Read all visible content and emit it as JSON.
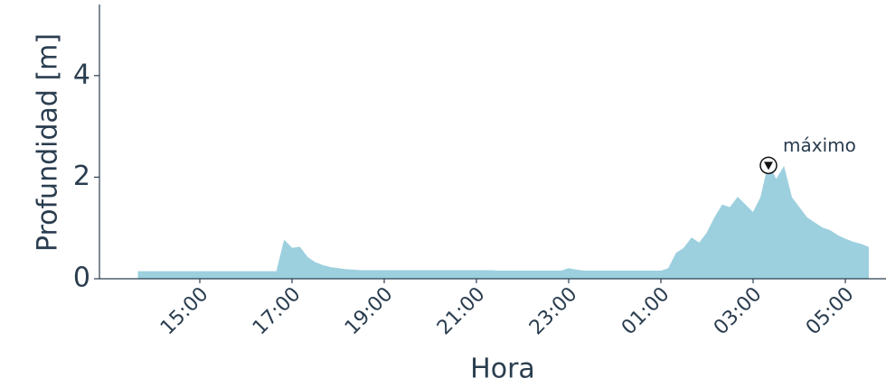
{
  "chart_data": {
    "type": "area",
    "x_label": "Hora",
    "y_label": "Profundidad [m]",
    "x": [
      "13:40",
      "13:50",
      "14:00",
      "14:10",
      "14:20",
      "14:30",
      "14:40",
      "14:50",
      "15:00",
      "15:10",
      "15:20",
      "15:30",
      "15:40",
      "15:50",
      "16:00",
      "16:10",
      "16:20",
      "16:30",
      "16:40",
      "16:50",
      "17:00",
      "17:10",
      "17:20",
      "17:30",
      "17:40",
      "17:50",
      "18:00",
      "18:10",
      "18:20",
      "18:30",
      "18:40",
      "18:50",
      "19:00",
      "19:10",
      "19:20",
      "19:30",
      "19:40",
      "19:50",
      "20:00",
      "20:10",
      "20:20",
      "20:30",
      "20:40",
      "20:50",
      "21:00",
      "21:10",
      "21:20",
      "21:30",
      "21:40",
      "21:50",
      "22:00",
      "22:10",
      "22:20",
      "22:30",
      "22:40",
      "22:50",
      "23:00",
      "23:10",
      "23:20",
      "23:30",
      "23:40",
      "23:50",
      "00:00",
      "00:10",
      "00:20",
      "00:30",
      "00:40",
      "00:50",
      "01:00",
      "01:10",
      "01:20",
      "01:30",
      "01:40",
      "01:50",
      "02:00",
      "02:10",
      "02:20",
      "02:30",
      "02:40",
      "02:50",
      "03:00",
      "03:10",
      "03:20",
      "03:30",
      "03:40",
      "03:50",
      "04:00",
      "04:10",
      "04:20",
      "04:30",
      "04:40",
      "04:50",
      "05:00",
      "05:10",
      "05:20",
      "05:30"
    ],
    "series": [
      {
        "color": "#9dd0df",
        "values": [
          0.14,
          0.14,
          0.14,
          0.14,
          0.14,
          0.14,
          0.14,
          0.14,
          0.14,
          0.14,
          0.14,
          0.14,
          0.14,
          0.14,
          0.14,
          0.14,
          0.14,
          0.14,
          0.14,
          0.75,
          0.6,
          0.62,
          0.42,
          0.32,
          0.26,
          0.22,
          0.2,
          0.18,
          0.17,
          0.16,
          0.16,
          0.16,
          0.16,
          0.16,
          0.16,
          0.16,
          0.16,
          0.16,
          0.16,
          0.16,
          0.16,
          0.16,
          0.16,
          0.16,
          0.16,
          0.16,
          0.16,
          0.15,
          0.15,
          0.15,
          0.15,
          0.15,
          0.15,
          0.15,
          0.15,
          0.15,
          0.2,
          0.17,
          0.15,
          0.15,
          0.15,
          0.15,
          0.15,
          0.15,
          0.15,
          0.15,
          0.15,
          0.15,
          0.15,
          0.2,
          0.5,
          0.6,
          0.8,
          0.7,
          0.9,
          1.2,
          1.45,
          1.4,
          1.6,
          1.45,
          1.3,
          1.6,
          2.25,
          1.95,
          2.2,
          1.6,
          1.4,
          1.2,
          1.1,
          1.0,
          0.95,
          0.85,
          0.78,
          0.72,
          0.68,
          0.62
        ]
      }
    ],
    "ylim": [
      0,
      5.4
    ],
    "yticks": [
      0,
      2,
      4
    ],
    "xticks": [
      "15:00",
      "17:00",
      "19:00",
      "21:00",
      "23:00",
      "01:00",
      "03:00",
      "05:00"
    ],
    "annotation": {
      "text": "máximo",
      "x": "03:20",
      "y": 2.25
    }
  }
}
